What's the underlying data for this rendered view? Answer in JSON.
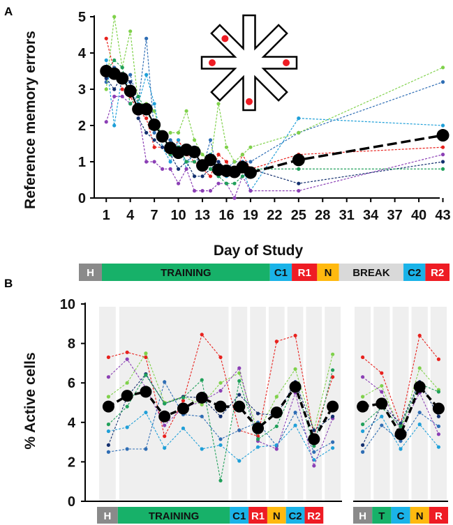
{
  "colors": {
    "H": "#8a8a8a",
    "TRAINING": "#17b169",
    "T": "#17b169",
    "C1": "#1ab3e8",
    "C": "#1ab3e8",
    "C2": "#1ab3e8",
    "R1": "#ee1c24",
    "R2": "#ee1c24",
    "R": "#ee1c24",
    "N": "#ffb90f",
    "BREAK": "#d9d9d9",
    "panel_bg": "#efefef",
    "mean": "#000000",
    "animals": [
      "#e8211d",
      "#2e6db4",
      "#7fd14a",
      "#1f9fd8",
      "#8b3fb5",
      "#132f6e",
      "#20a05a"
    ]
  },
  "chart_data": [
    {
      "panel": "A",
      "type": "line",
      "ylabel": "Reference memory errors",
      "xlabel": "Day of Study",
      "ylim": [
        0,
        5
      ],
      "yticks": [
        0,
        1,
        2,
        3,
        4,
        5
      ],
      "xticks": [
        "1",
        "4",
        "7",
        "10",
        "13",
        "16",
        "19",
        "22",
        "25",
        "28",
        "31",
        "34",
        "37",
        "40",
        "43"
      ],
      "xlim": [
        -0.5,
        44
      ],
      "mean": {
        "x": [
          1,
          2,
          3,
          4,
          5,
          6,
          7,
          8,
          9,
          10,
          11,
          12,
          13,
          14,
          15,
          16,
          17,
          18,
          19,
          25,
          43
        ],
        "y": [
          3.5,
          3.43,
          3.3,
          2.95,
          2.45,
          2.45,
          2.02,
          1.7,
          1.38,
          1.25,
          1.33,
          1.27,
          0.9,
          1.05,
          0.78,
          0.75,
          0.72,
          0.85,
          0.7,
          1.05,
          1.73
        ]
      },
      "animals_x": [
        1,
        2,
        3,
        4,
        5,
        6,
        7,
        8,
        9,
        10,
        11,
        12,
        13,
        14,
        15,
        16,
        17,
        18,
        19,
        25,
        43
      ],
      "animals": [
        [
          4.4,
          3.5,
          3.0,
          2.8,
          2.4,
          2.2,
          1.4,
          1.4,
          1.2,
          1.6,
          1.2,
          1.0,
          0.8,
          0.6,
          1.2,
          1.0,
          0.6,
          1.2,
          0.8,
          1.2,
          1.4
        ],
        [
          3.2,
          3.6,
          3.2,
          3.4,
          2.6,
          4.4,
          1.8,
          1.6,
          1.6,
          1.4,
          1.0,
          1.2,
          0.8,
          1.6,
          0.6,
          0.8,
          1.0,
          1.0,
          1.0,
          1.8,
          3.2
        ],
        [
          3.0,
          5.0,
          3.6,
          4.6,
          2.6,
          2.6,
          2.4,
          1.6,
          1.8,
          1.8,
          2.4,
          1.6,
          1.2,
          1.0,
          2.6,
          1.4,
          1.0,
          1.2,
          1.4,
          1.8,
          3.6
        ],
        [
          3.8,
          2.0,
          3.4,
          3.0,
          2.6,
          3.4,
          2.6,
          1.4,
          1.0,
          1.6,
          0.8,
          1.4,
          0.8,
          1.2,
          0.8,
          0.6,
          0.8,
          0.8,
          0.2,
          2.2,
          2.0
        ],
        [
          2.1,
          2.8,
          2.8,
          2.6,
          2.4,
          1.0,
          1.0,
          0.8,
          0.8,
          0.4,
          0.8,
          0.2,
          0.2,
          0.2,
          0.4,
          0.4,
          0.0,
          0.6,
          0.2,
          0.2,
          1.2
        ],
        [
          3.3,
          3.0,
          3.4,
          3.2,
          2.2,
          1.8,
          1.6,
          1.4,
          1.2,
          0.8,
          1.0,
          0.6,
          0.6,
          0.8,
          1.0,
          0.8,
          0.6,
          0.8,
          0.8,
          0.4,
          1.0
        ],
        [
          3.5,
          3.8,
          3.6,
          2.6,
          2.8,
          2.4,
          2.0,
          1.8,
          1.2,
          1.4,
          1.0,
          1.0,
          1.0,
          0.8,
          0.6,
          0.4,
          0.4,
          0.6,
          0.8,
          0.8,
          0.8
        ]
      ],
      "phases": [
        {
          "label": "H",
          "w": 1.0
        },
        {
          "label": "TRAINING",
          "w": 7.3
        },
        {
          "label": "C1",
          "w": 0.95
        },
        {
          "label": "R1",
          "w": 1.1
        },
        {
          "label": "N",
          "w": 0.95
        },
        {
          "label": "BREAK",
          "w": 2.8
        },
        {
          "label": "C2",
          "w": 0.95
        },
        {
          "label": "R2",
          "w": 1.05
        }
      ]
    },
    {
      "panel": "B",
      "type": "line",
      "ylabel": "% Active cells",
      "ylim": [
        0,
        10
      ],
      "yticks": [
        0,
        2,
        4,
        6,
        8,
        10
      ],
      "left": {
        "mean": [
          4.8,
          5.35,
          5.55,
          4.3,
          4.7,
          5.25,
          4.8,
          4.8,
          3.7,
          4.5,
          5.8,
          3.15,
          4.8
        ],
        "animals": [
          [
            7.3,
            7.55,
            7.3,
            3.3,
            5.1,
            8.45,
            7.3,
            3.6,
            3.3,
            8.1,
            8.4,
            3.3,
            6.3
          ],
          [
            2.5,
            2.65,
            2.65,
            6.05,
            4.4,
            4.3,
            3.15,
            3.6,
            4.0,
            2.8,
            4.5,
            2.5,
            3.0
          ],
          [
            5.3,
            6.0,
            7.5,
            5.0,
            5.3,
            4.9,
            6.0,
            6.5,
            3.5,
            5.3,
            6.7,
            3.6,
            7.45
          ],
          [
            3.55,
            3.75,
            4.5,
            2.7,
            3.7,
            2.65,
            2.85,
            2.05,
            2.75,
            2.85,
            3.85,
            2.1,
            2.7
          ],
          [
            6.3,
            7.2,
            5.75,
            3.85,
            4.75,
            5.05,
            5.6,
            6.75,
            3.05,
            2.65,
            5.5,
            1.8,
            4.2
          ],
          [
            2.85,
            5.3,
            6.45,
            4.95,
            5.3,
            5.25,
            4.3,
            5.4,
            4.45,
            4.35,
            6.05,
            3.6,
            4.3
          ],
          [
            3.9,
            4.8,
            6.4,
            4.95,
            5.25,
            6.15,
            1.05,
            6.1,
            3.15,
            3.8,
            5.95,
            2.8,
            6.65
          ]
        ],
        "phases": [
          "H",
          "TRAINING",
          "C1",
          "R1",
          "N",
          "C2",
          "R2"
        ],
        "phase_cols": [
          1,
          6,
          1,
          1,
          1,
          1,
          1
        ]
      },
      "right": {
        "mean": [
          4.8,
          4.95,
          3.4,
          5.8,
          4.7
        ],
        "animals": [
          [
            7.3,
            6.5,
            3.9,
            8.4,
            7.2
          ],
          [
            2.5,
            3.85,
            3.05,
            4.5,
            3.8
          ],
          [
            5.3,
            5.85,
            3.55,
            6.75,
            5.65
          ],
          [
            3.55,
            4.3,
            2.65,
            3.9,
            2.75
          ],
          [
            6.3,
            5.55,
            3.6,
            5.5,
            3.4
          ],
          [
            2.85,
            4.9,
            3.95,
            6.05,
            4.3
          ],
          [
            3.9,
            4.75,
            3.8,
            5.95,
            5.55
          ]
        ],
        "phases": [
          "H",
          "T",
          "C",
          "N",
          "R"
        ]
      }
    }
  ]
}
